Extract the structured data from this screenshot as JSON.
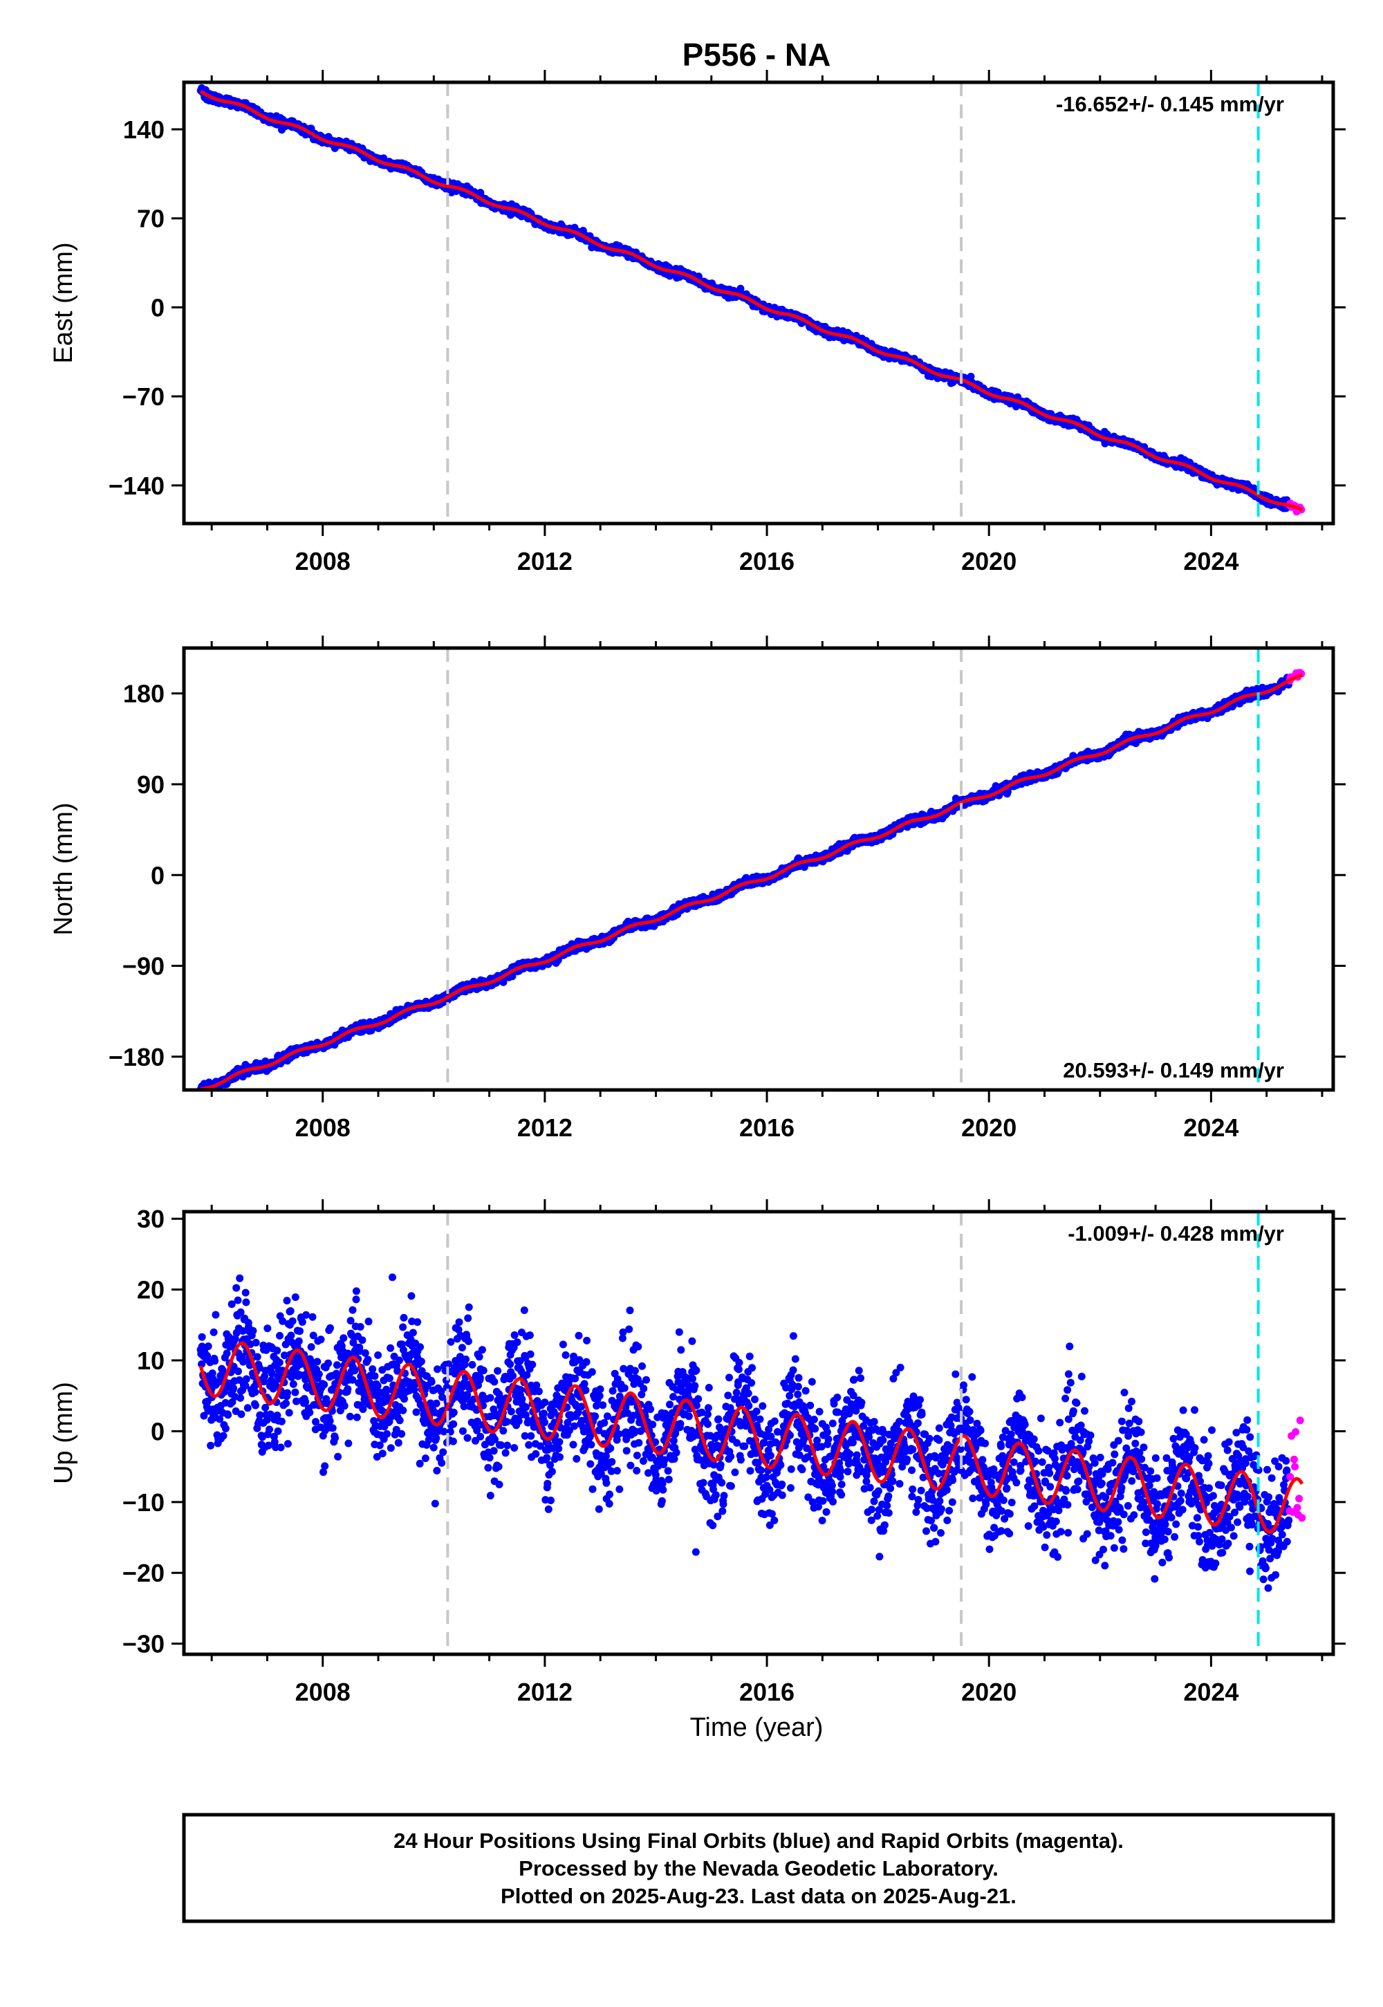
{
  "title": "P556 - NA",
  "xlabel": "Time (year)",
  "footer": {
    "line1": "24 Hour Positions Using Final Orbits (blue) and Rapid Orbits (magenta).",
    "line2": "Processed by the Nevada Geodetic Laboratory.",
    "line3": "Plotted on 2025-Aug-23. Last data on 2025-Aug-21."
  },
  "colors": {
    "final_orbits": "#0000ff",
    "rapid_orbits": "#ff00ff",
    "model_fit": "#ff0000",
    "equipment_change": "#c8c8c8",
    "earthquake": "#00e5ee"
  },
  "chart_data": [
    {
      "type": "scatter",
      "ylabel": "East (mm)",
      "rate_label": "-16.652+/- 0.145 mm/yr",
      "xlim": [
        2005.5,
        2026.2
      ],
      "ylim": [
        -170,
        177
      ],
      "x_ticks": [
        2008,
        2012,
        2016,
        2020,
        2024
      ],
      "y_ticks": [
        140,
        70,
        0,
        -70,
        -140
      ],
      "y_tick_labels": [
        "140",
        "70",
        "0",
        "−70",
        "−140"
      ],
      "vertical_lines": [
        {
          "x": 2010.25,
          "style": "gray-dashed"
        },
        {
          "x": 2019.5,
          "style": "gray-dashed"
        },
        {
          "x": 2024.85,
          "style": "cyan-dashed"
        }
      ],
      "model": {
        "t0": 2016.0,
        "offset": 0.0,
        "rate": -16.652,
        "annual_amp": 1.5,
        "noise_sd": 1.5
      },
      "series": [
        {
          "name": "Final Orbits",
          "color": "#0000ff",
          "x_range": [
            2005.8,
            2025.4
          ],
          "points": 3000
        },
        {
          "name": "Rapid Orbits",
          "color": "#ff00ff",
          "x_range": [
            2025.4,
            2025.64
          ],
          "points": 10
        }
      ]
    },
    {
      "type": "scatter",
      "ylabel": "North (mm)",
      "rate_label": "20.593+/- 0.149 mm/yr",
      "xlim": [
        2005.5,
        2026.2
      ],
      "ylim": [
        -213,
        225
      ],
      "x_ticks": [
        2008,
        2012,
        2016,
        2020,
        2024
      ],
      "y_ticks": [
        180,
        90,
        0,
        -90,
        -180
      ],
      "y_tick_labels": [
        "180",
        "90",
        "0",
        "−90",
        "−180"
      ],
      "vertical_lines": [
        {
          "x": 2010.25,
          "style": "gray-dashed"
        },
        {
          "x": 2019.5,
          "style": "gray-dashed"
        },
        {
          "x": 2024.85,
          "style": "cyan-dashed"
        }
      ],
      "model": {
        "t0": 2016.0,
        "offset": -2.0,
        "rate": 20.593,
        "annual_amp": 2.0,
        "noise_sd": 2.0
      },
      "series": [
        {
          "name": "Final Orbits",
          "color": "#0000ff",
          "x_range": [
            2005.8,
            2025.4
          ],
          "points": 3000
        },
        {
          "name": "Rapid Orbits",
          "color": "#ff00ff",
          "x_range": [
            2025.4,
            2025.64
          ],
          "points": 10
        }
      ]
    },
    {
      "type": "scatter",
      "ylabel": "Up (mm)",
      "rate_label": "-1.009+/- 0.428 mm/yr",
      "xlim": [
        2005.5,
        2026.2
      ],
      "ylim": [
        -31.5,
        31
      ],
      "x_ticks": [
        2008,
        2012,
        2016,
        2020,
        2024
      ],
      "y_ticks": [
        30,
        20,
        10,
        0,
        -10,
        -20,
        -30
      ],
      "y_tick_labels": [
        "30",
        "20",
        "10",
        "0",
        "−10",
        "−20",
        "−30"
      ],
      "vertical_lines": [
        {
          "x": 2010.25,
          "style": "gray-dashed"
        },
        {
          "x": 2019.5,
          "style": "gray-dashed"
        },
        {
          "x": 2024.85,
          "style": "cyan-dashed"
        }
      ],
      "model": {
        "t0": 2006.0,
        "offset": 9.0,
        "rate": -1.009,
        "annual_amp": 4.0,
        "noise_sd": 4.0
      },
      "series": [
        {
          "name": "Final Orbits",
          "color": "#0000ff",
          "x_range": [
            2005.8,
            2025.4
          ],
          "points": 3000
        },
        {
          "name": "Rapid Orbits",
          "color": "#ff00ff",
          "x_range": [
            2025.4,
            2025.64
          ],
          "points": 12
        }
      ]
    }
  ]
}
